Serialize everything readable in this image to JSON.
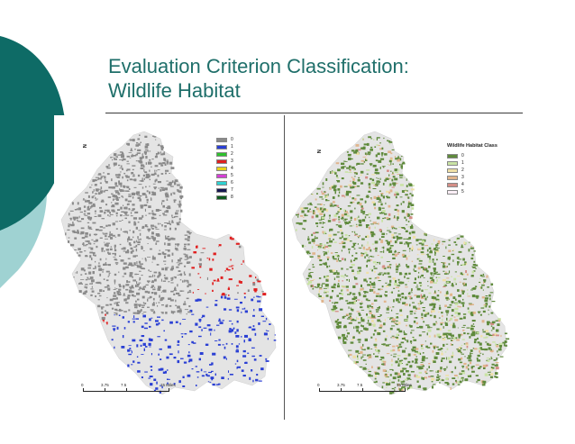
{
  "slide": {
    "title_line1": "Evaluation Criterion Classification:",
    "title_line2": "Wildlife Habitat",
    "accent_color": "#1f6f6a"
  },
  "left_map": {
    "north_label": "N",
    "legend_title": "",
    "legend": [
      {
        "label": "0",
        "color": "#8a8a8a"
      },
      {
        "label": "1",
        "color": "#2a3fd4"
      },
      {
        "label": "2",
        "color": "#2ec22e"
      },
      {
        "label": "3",
        "color": "#e02020"
      },
      {
        "label": "4",
        "color": "#e8d21c"
      },
      {
        "label": "5",
        "color": "#d63fd6"
      },
      {
        "label": "6",
        "color": "#2fd1d1"
      },
      {
        "label": "7",
        "color": "#161650"
      },
      {
        "label": "8",
        "color": "#0e5a1e"
      }
    ],
    "scale_labels": [
      "0",
      "3.75",
      "7.5",
      "15 Miles"
    ]
  },
  "right_map": {
    "north_label": "N",
    "legend_title": "Wildlife Habitat Class",
    "legend": [
      {
        "label": "0",
        "color": "#5f8a3c"
      },
      {
        "label": "1",
        "color": "#c9e3a4"
      },
      {
        "label": "2",
        "color": "#efe0a6"
      },
      {
        "label": "3",
        "color": "#e0b48c"
      },
      {
        "label": "4",
        "color": "#d48e86"
      },
      {
        "label": "5",
        "color": "#fbeef6"
      }
    ],
    "scale_labels": [
      "0",
      "3.75",
      "7.5",
      "15 Miles"
    ]
  }
}
